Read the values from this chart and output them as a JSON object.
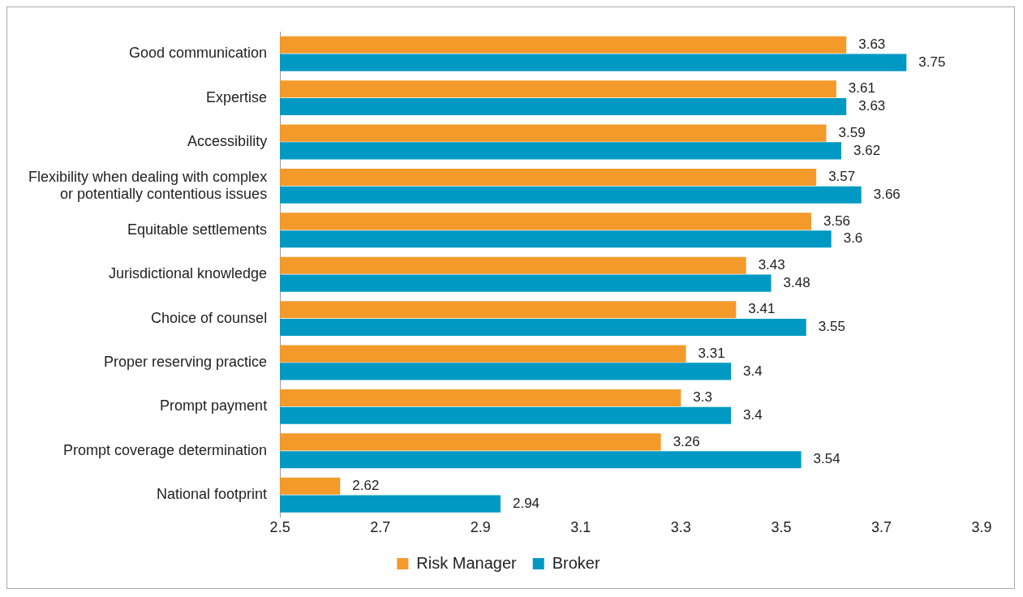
{
  "chart_data": {
    "type": "bar",
    "orientation": "horizontal",
    "categories": [
      "Good communication",
      "Expertise",
      "Accessibility",
      "Flexibility when dealing with complex or potentially contentious issues",
      "Equitable settlements",
      "Jurisdictional knowledge",
      "Choice of counsel",
      "Proper reserving practice",
      "Prompt payment",
      "Prompt coverage determination",
      "National footprint"
    ],
    "series": [
      {
        "name": "Risk Manager",
        "color": "#f39a2b",
        "values": [
          3.63,
          3.61,
          3.59,
          3.57,
          3.56,
          3.43,
          3.41,
          3.31,
          3.3,
          3.26,
          2.62
        ]
      },
      {
        "name": "Broker",
        "color": "#0099c3",
        "values": [
          3.75,
          3.63,
          3.62,
          3.66,
          3.6,
          3.48,
          3.55,
          3.4,
          3.4,
          3.54,
          2.94
        ]
      }
    ],
    "xlim": [
      2.5,
      3.9
    ],
    "xticks": [
      2.5,
      2.7,
      2.9,
      3.1,
      3.3,
      3.5,
      3.7,
      3.9
    ],
    "data_labels": true,
    "grid": false,
    "legend": "bottom"
  }
}
